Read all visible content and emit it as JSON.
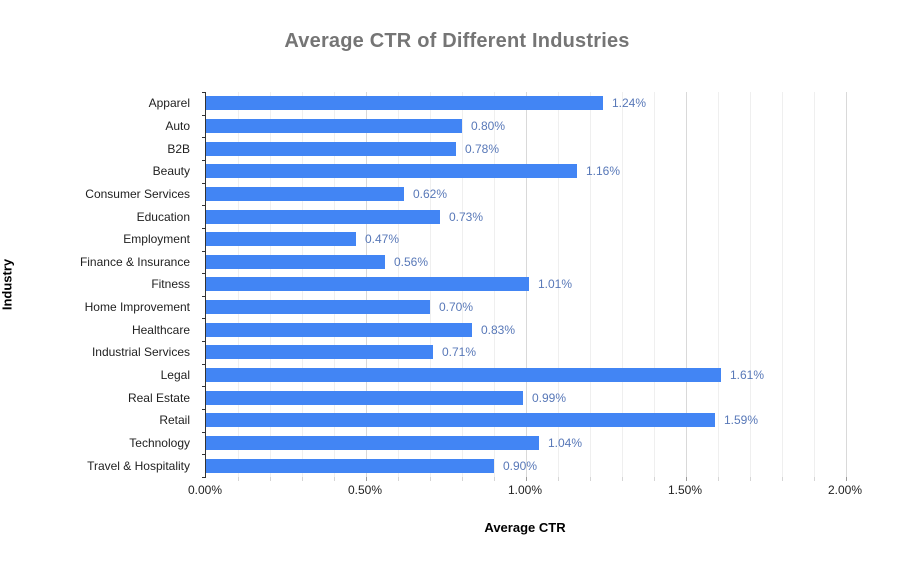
{
  "chart_data": {
    "type": "bar",
    "orientation": "horizontal",
    "title": "Average CTR of Different Industries",
    "xlabel": "Average CTR",
    "ylabel": "Industry",
    "categories": [
      "Apparel",
      "Auto",
      "B2B",
      "Beauty",
      "Consumer Services",
      "Education",
      "Employment",
      "Finance & Insurance",
      "Fitness",
      "Home Improvement",
      "Healthcare",
      "Industrial Services",
      "Legal",
      "Real Estate",
      "Retail",
      "Technology",
      "Travel & Hospitality"
    ],
    "values": [
      1.24,
      0.8,
      0.78,
      1.16,
      0.62,
      0.73,
      0.47,
      0.56,
      1.01,
      0.7,
      0.83,
      0.71,
      1.61,
      0.99,
      1.59,
      1.04,
      0.9
    ],
    "data_labels": [
      "1.24%",
      "0.80%",
      "0.78%",
      "1.16%",
      "0.62%",
      "0.73%",
      "0.47%",
      "0.56%",
      "1.01%",
      "0.70%",
      "0.83%",
      "0.71%",
      "1.61%",
      "0.99%",
      "1.59%",
      "1.04%",
      "0.90%"
    ],
    "xlim": [
      0,
      2.0
    ],
    "x_tick_labels": [
      "0.00%",
      "0.50%",
      "1.00%",
      "1.50%",
      "2.00%"
    ],
    "x_tick_values": [
      0,
      0.5,
      1.0,
      1.5,
      2.0
    ],
    "minor_grid_step": 0.1,
    "grid": "on",
    "legend": "none",
    "colors": {
      "bar": "#4285f4",
      "data_label": "#5878b8",
      "title": "#757575",
      "axis_text": "#1f1f1f",
      "major_grid": "#d9d9d9",
      "minor_grid": "#efefef",
      "axis_line": "#333333",
      "background": "#ffffff"
    }
  }
}
